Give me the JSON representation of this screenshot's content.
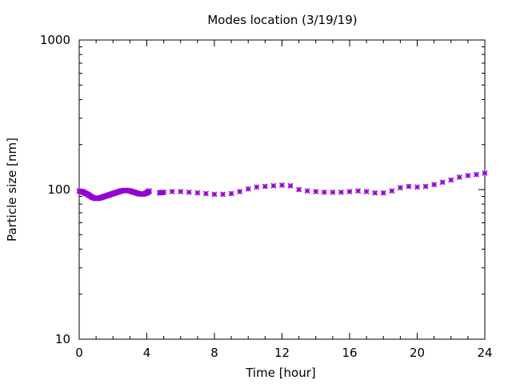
{
  "chart_data": {
    "type": "scatter",
    "title": "Modes location (3/19/19)",
    "xlabel": "Time [hour]",
    "ylabel": "Particle size [nm]",
    "xlim": [
      0,
      24
    ],
    "ylim": [
      10,
      1000
    ],
    "yscale": "log",
    "x_ticks": [
      0,
      4,
      8,
      12,
      16,
      20,
      24
    ],
    "y_ticks": [
      10,
      100,
      1000
    ],
    "grid": false,
    "legend": "none",
    "marker_color": "#9400d3",
    "series": [
      {
        "x": [
          0.0,
          0.25,
          0.5,
          0.75,
          1.0,
          1.25,
          1.5,
          1.75,
          2.0,
          2.25,
          2.5,
          2.75,
          3.0,
          3.25,
          3.5,
          3.75,
          4.0,
          4.15,
          4.75,
          5.0,
          5.5,
          6.0,
          6.5,
          7.0,
          7.5,
          8.0,
          8.5,
          9.0,
          9.5,
          10.0,
          10.5,
          11.0,
          11.5,
          12.0,
          12.5,
          13.0,
          13.5,
          14.0,
          14.5,
          15.0,
          15.5,
          16.0,
          16.5,
          17.0,
          17.5,
          18.0,
          18.5,
          19.0,
          19.5,
          20.0,
          20.5,
          21.0,
          21.5,
          22.0,
          22.5,
          23.0,
          23.5,
          24.0
        ],
        "y": [
          98,
          96,
          93,
          89,
          87,
          88,
          90,
          92,
          94,
          96,
          98,
          99,
          98,
          96,
          94,
          93,
          95,
          98,
          95,
          96,
          97,
          97,
          96,
          95,
          94,
          93,
          93,
          94,
          97,
          101,
          104,
          105,
          106,
          107,
          106,
          100,
          98,
          97,
          96,
          96,
          96,
          97,
          98,
          97,
          95,
          95,
          98,
          103,
          105,
          104,
          105,
          108,
          112,
          116,
          121,
          124,
          126,
          129
        ]
      }
    ]
  }
}
